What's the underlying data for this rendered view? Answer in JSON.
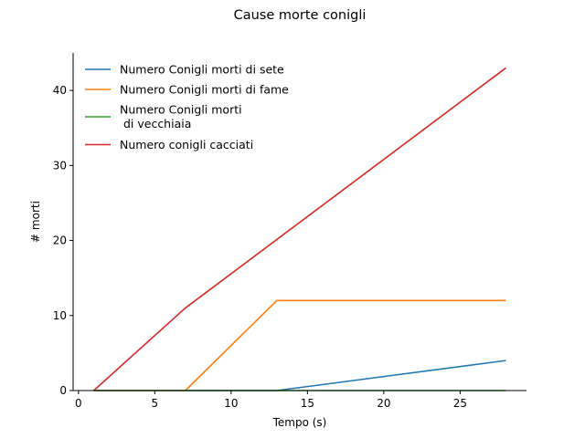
{
  "chart_data": {
    "type": "line",
    "title": "Cause morte conigli",
    "xlabel": "Tempo (s)",
    "ylabel": "# morti",
    "xlim": [
      -0.35,
      29.35
    ],
    "ylim": [
      0,
      45
    ],
    "xticks": [
      0,
      5,
      10,
      15,
      20,
      25
    ],
    "yticks": [
      0,
      10,
      20,
      30,
      40
    ],
    "grid": false,
    "legend_position": "top-left",
    "series": [
      {
        "name": "Numero Conigli morti di sete",
        "color": "#1f77b4",
        "x": [
          1,
          13,
          28
        ],
        "y": [
          0,
          0,
          4
        ]
      },
      {
        "name": "Numero Conigli morti di fame",
        "color": "#ff7f0e",
        "x": [
          1,
          7,
          13,
          28
        ],
        "y": [
          0,
          0,
          12,
          12
        ]
      },
      {
        "name": "Numero Conigli morti\n di vecchiaia",
        "color": "#2ca02c",
        "x": [
          1,
          28
        ],
        "y": [
          0,
          0
        ]
      },
      {
        "name": "Numero conigli cacciati",
        "color": "#d62728",
        "x": [
          1,
          7,
          28
        ],
        "y": [
          0,
          11,
          43
        ]
      }
    ]
  }
}
